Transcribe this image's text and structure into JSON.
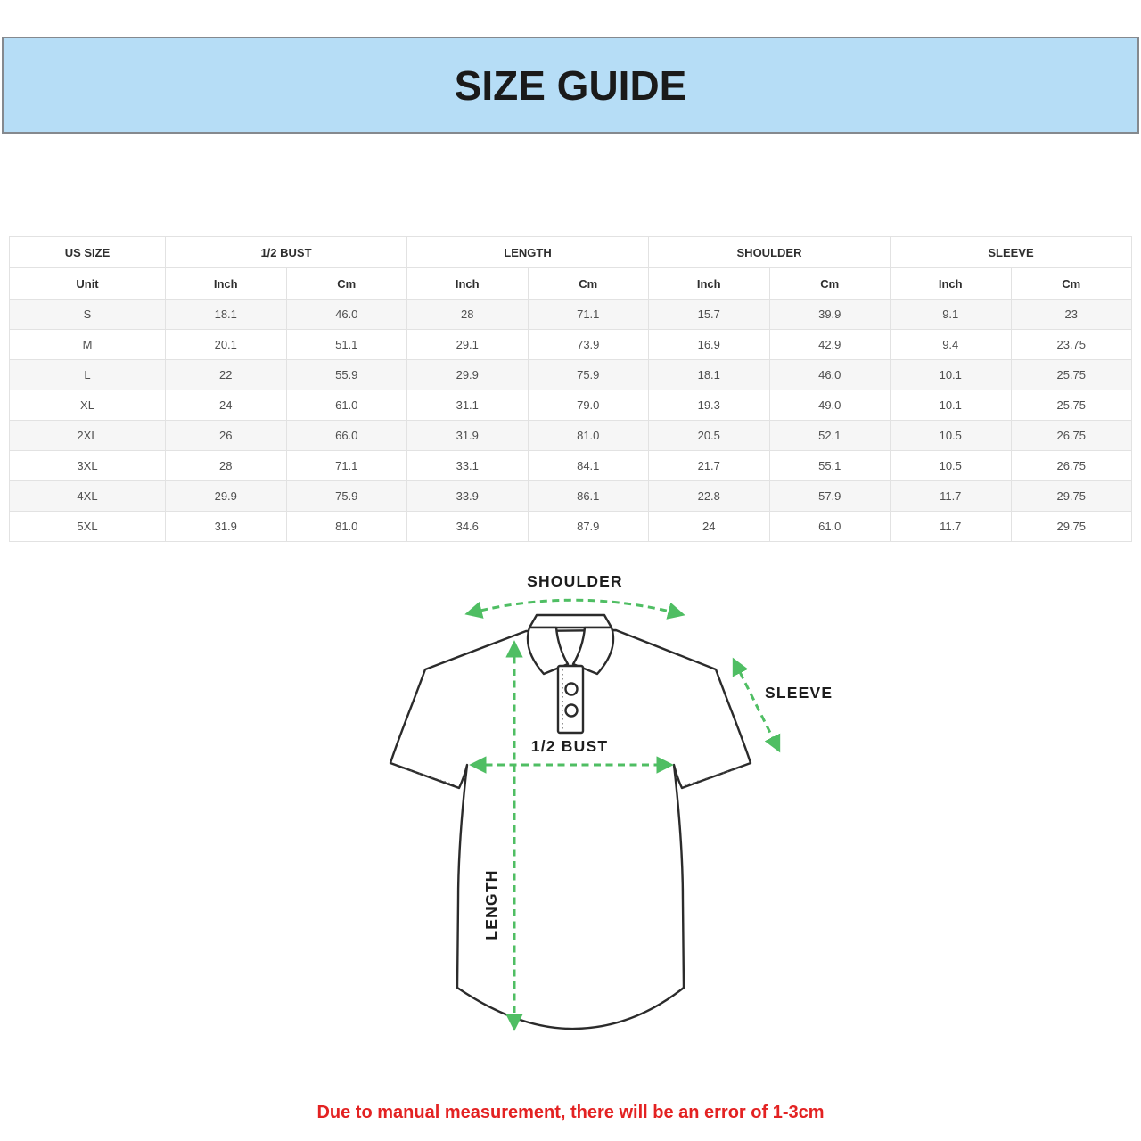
{
  "banner": {
    "title": "SIZE GUIDE"
  },
  "table": {
    "groups": [
      {
        "label": "US SIZE",
        "colspan": 1
      },
      {
        "label": "1/2 BUST",
        "colspan": 2
      },
      {
        "label": "LENGTH",
        "colspan": 2
      },
      {
        "label": "SHOULDER",
        "colspan": 2
      },
      {
        "label": "SLEEVE",
        "colspan": 2
      }
    ],
    "unit_row": [
      "Unit",
      "Inch",
      "Cm",
      "Inch",
      "Cm",
      "Inch",
      "Cm",
      "Inch",
      "Cm"
    ],
    "rows": [
      [
        "S",
        "18.1",
        "46.0",
        "28",
        "71.1",
        "15.7",
        "39.9",
        "9.1",
        "23"
      ],
      [
        "M",
        "20.1",
        "51.1",
        "29.1",
        "73.9",
        "16.9",
        "42.9",
        "9.4",
        "23.75"
      ],
      [
        "L",
        "22",
        "55.9",
        "29.9",
        "75.9",
        "18.1",
        "46.0",
        "10.1",
        "25.75"
      ],
      [
        "XL",
        "24",
        "61.0",
        "31.1",
        "79.0",
        "19.3",
        "49.0",
        "10.1",
        "25.75"
      ],
      [
        "2XL",
        "26",
        "66.0",
        "31.9",
        "81.0",
        "20.5",
        "52.1",
        "10.5",
        "26.75"
      ],
      [
        "3XL",
        "28",
        "71.1",
        "33.1",
        "84.1",
        "21.7",
        "55.1",
        "10.5",
        "26.75"
      ],
      [
        "4XL",
        "29.9",
        "75.9",
        "33.9",
        "86.1",
        "22.8",
        "57.9",
        "11.7",
        "29.75"
      ],
      [
        "5XL",
        "31.9",
        "81.0",
        "34.6",
        "87.9",
        "24",
        "61.0",
        "11.7",
        "29.75"
      ]
    ]
  },
  "diagram": {
    "labels": {
      "shoulder": "SHOULDER",
      "sleeve": "SLEEVE",
      "bust": "1/2 BUST",
      "length": "LENGTH"
    },
    "arrow_color": "#4fbe63"
  },
  "note": {
    "text": "Due to manual measurement, there will be an error of 1-3cm",
    "color": "#e32222"
  },
  "colors": {
    "banner_bg": "#b6ddf6",
    "banner_border": "#85898e",
    "stripe": "#f6f6f6",
    "table_border": "#e2e2e2"
  }
}
